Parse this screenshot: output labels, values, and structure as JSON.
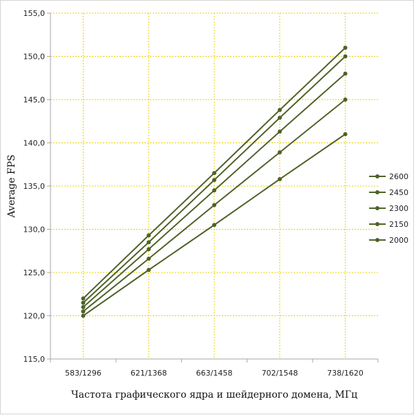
{
  "chart_data": {
    "type": "line",
    "title": "",
    "xlabel": "Частота графического ядра и шейдерного домена, МГц",
    "ylabel": "Average FPS",
    "categories": [
      "583/1296",
      "621/1368",
      "663/1458",
      "702/1548",
      "738/1620"
    ],
    "ylim": [
      115,
      155
    ],
    "yticks": [
      "115,0",
      "120,0",
      "125,0",
      "130,0",
      "135,0",
      "140,0",
      "145,0",
      "150,0",
      "155,0"
    ],
    "ytick_values": [
      115,
      120,
      125,
      130,
      135,
      140,
      145,
      150,
      155
    ],
    "grid": true,
    "legend_position": "right",
    "series": [
      {
        "name": "2600",
        "values": [
          122.0,
          129.3,
          136.5,
          143.8,
          151.0
        ]
      },
      {
        "name": "2450",
        "values": [
          121.5,
          128.5,
          135.7,
          142.9,
          150.0
        ]
      },
      {
        "name": "2300",
        "values": [
          121.0,
          127.7,
          134.5,
          141.3,
          148.0
        ]
      },
      {
        "name": "2150",
        "values": [
          120.5,
          126.6,
          132.8,
          138.9,
          145.0
        ]
      },
      {
        "name": "2000",
        "values": [
          120.0,
          125.3,
          130.5,
          135.8,
          141.0
        ]
      }
    ],
    "colors": {
      "line": "#4f6228",
      "marker": "#4f6228",
      "grid": "#e8d000",
      "axis": "#a6a6a6",
      "background": "#ffffff"
    }
  }
}
